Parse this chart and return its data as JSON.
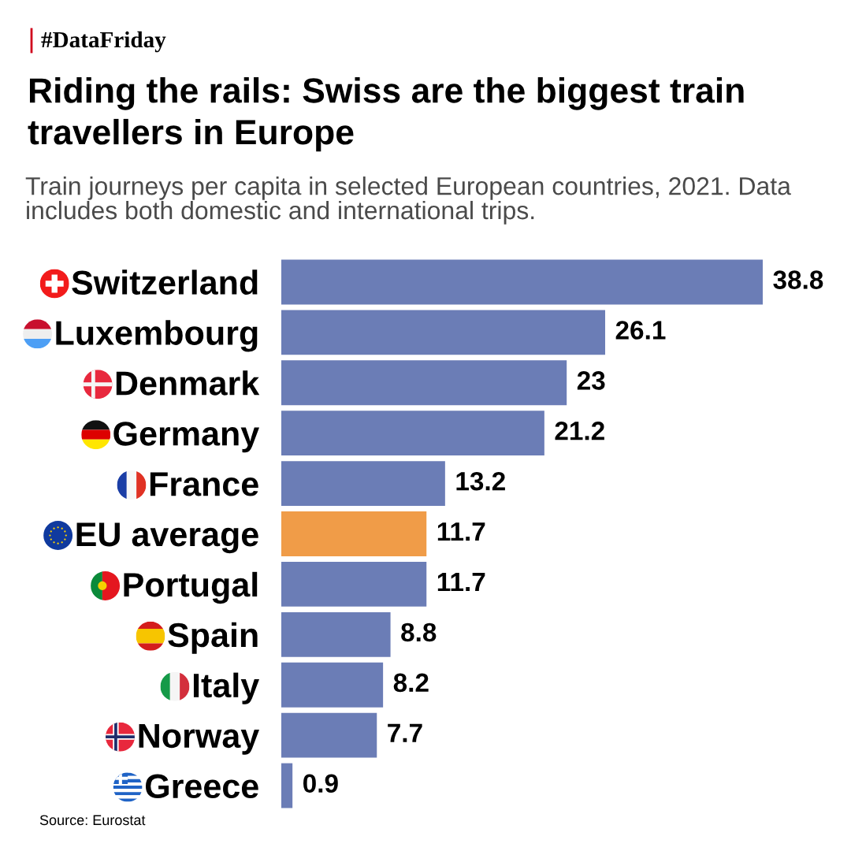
{
  "chart_data": {
    "type": "bar",
    "orientation": "horizontal",
    "title": "Riding the rails: Swiss are the biggest train travellers in Europe",
    "subtitle": "Train journeys per capita in selected European countries, 2021. Data includes both domestic and international trips.",
    "categories": [
      "Switzerland",
      "Luxembourg",
      "Denmark",
      "Germany",
      "France",
      "EU average",
      "Portugal",
      "Spain",
      "Italy",
      "Norway",
      "Greece"
    ],
    "values": [
      38.8,
      26.1,
      23,
      21.2,
      13.2,
      11.7,
      11.7,
      8.8,
      8.2,
      7.7,
      0.9
    ],
    "colors": [
      "#6b7db6",
      "#6b7db6",
      "#6b7db6",
      "#6b7db6",
      "#6b7db6",
      "#f09c48",
      "#6b7db6",
      "#6b7db6",
      "#6b7db6",
      "#6b7db6",
      "#6b7db6"
    ],
    "data_labels": true,
    "tick_labels": "y",
    "annotations": [
      "#DataFriday",
      "Source: Eurostat"
    ]
  }
}
